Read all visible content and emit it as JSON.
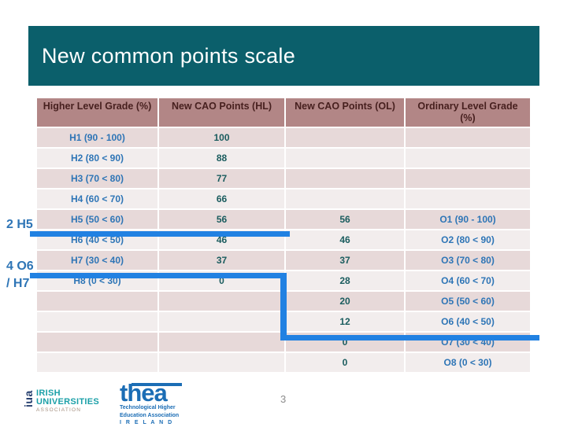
{
  "slide": {
    "title": "New common points scale",
    "page_number": "3",
    "colors": {
      "title_bar": "#0b5f6b",
      "header_bg": "#b28686",
      "header_text": "#47201f",
      "row_dark": "#e7d9d9",
      "row_light": "#f2eded",
      "grade_text": "#2e75b6",
      "points_text": "#1a5c5e",
      "step_line": "#2181e2"
    }
  },
  "table": {
    "headers": [
      "Higher Level Grade (%)",
      "New CAO Points (HL)",
      "New CAO Points (OL)",
      "Ordinary Level Grade (%)"
    ],
    "rows": [
      {
        "c": [
          "H1 (90 - 100)",
          "100",
          "",
          ""
        ]
      },
      {
        "c": [
          "H2 (80 < 90)",
          "88",
          "",
          ""
        ]
      },
      {
        "c": [
          "H3 (70 < 80)",
          "77",
          "",
          ""
        ]
      },
      {
        "c": [
          "H4 (60 < 70)",
          "66",
          "",
          ""
        ]
      },
      {
        "c": [
          "H5 (50 < 60)",
          "56",
          "56",
          "O1 (90 - 100)"
        ]
      },
      {
        "c": [
          "H6 (40 < 50)",
          "46",
          "46",
          "O2 (80 < 90)"
        ]
      },
      {
        "c": [
          "H7 (30 < 40)",
          "37",
          "37",
          "O3 (70 < 80)"
        ]
      },
      {
        "c": [
          "H8 (0 < 30)",
          "0",
          "28",
          "O4 (60 < 70)"
        ]
      },
      {
        "c": [
          "",
          "",
          "20",
          "O5 (50 < 60)"
        ]
      },
      {
        "c": [
          "",
          "",
          "12",
          "O6 (40 < 50)"
        ]
      },
      {
        "c": [
          "",
          "",
          "0",
          "O7 (30 < 40)"
        ]
      },
      {
        "c": [
          "",
          "",
          "0",
          "O8 (0 < 30)"
        ]
      }
    ]
  },
  "annotations": {
    "h5_label": "2 H5",
    "o6_label_line1": "4 O6",
    "o6_label_line2": "/ H7"
  },
  "footer": {
    "iua_vertical": "iua",
    "iua_line1": "IRISH",
    "iua_line2": "UNIVERSITIES",
    "iua_line3": "ASSOCIATION",
    "thea_wordmark": "thea",
    "thea_line1": "Technological Higher",
    "thea_line2": "Education Association",
    "thea_line3": "I R E L A N D"
  }
}
